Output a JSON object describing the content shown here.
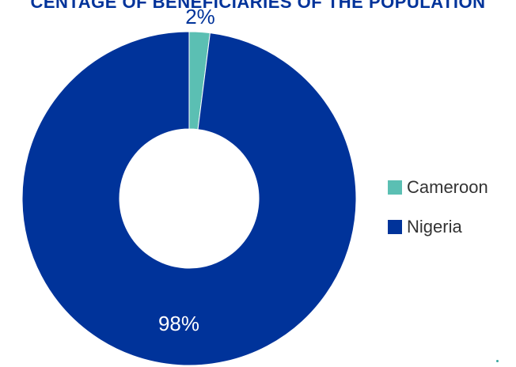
{
  "chart_data": {
    "type": "pie",
    "variant": "donut",
    "title": "CENTAGE OF BENEFICIARIES OF THE POPULATION",
    "categories": [
      "Cameroon",
      "Nigeria"
    ],
    "values": [
      2,
      98
    ],
    "data_labels": [
      "2%",
      "98%"
    ],
    "colors": [
      "#5bbfb3",
      "#00339a"
    ],
    "legend_position": "right"
  }
}
